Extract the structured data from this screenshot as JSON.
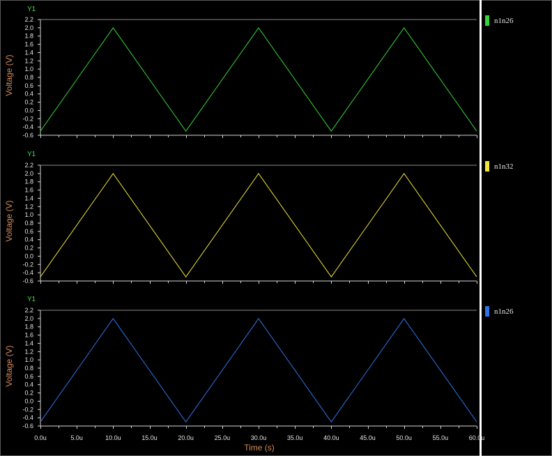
{
  "chart_data": [
    {
      "type": "line",
      "panel_label": "Y1",
      "ylabel": "Voltage (V)",
      "xlabel": "",
      "yticks": [
        "2.2",
        "2.0",
        "1.8",
        "1.6",
        "1.4",
        "1.2",
        "1.0",
        "0.8",
        "0.6",
        "0.4",
        "0.2",
        "0.0",
        "-0.2",
        "-0.4",
        "-0.6"
      ],
      "ylim": [
        -0.6,
        2.2
      ],
      "xlim": [
        0,
        60
      ],
      "grid": false,
      "legend_position": "right",
      "series": [
        {
          "name": "n1n26",
          "color": "#35d43a",
          "x": [
            0,
            10,
            20,
            30,
            40,
            50,
            60
          ],
          "y": [
            -0.5,
            2.0,
            -0.5,
            2.0,
            -0.5,
            2.0,
            -0.5
          ]
        }
      ]
    },
    {
      "type": "line",
      "panel_label": "Y1",
      "ylabel": "Voltage (V)",
      "xlabel": "",
      "yticks": [
        "2.2",
        "2.0",
        "1.8",
        "1.6",
        "1.4",
        "1.2",
        "1.0",
        "0.8",
        "0.6",
        "0.4",
        "0.2",
        "0.0",
        "-0.2",
        "-0.4",
        "-0.6"
      ],
      "ylim": [
        -0.6,
        2.2
      ],
      "xlim": [
        0,
        60
      ],
      "grid": false,
      "legend_position": "right",
      "series": [
        {
          "name": "n1n32",
          "color": "#f2e634",
          "x": [
            0,
            10,
            20,
            30,
            40,
            50,
            60
          ],
          "y": [
            -0.5,
            2.0,
            -0.5,
            2.0,
            -0.5,
            2.0,
            -0.5
          ]
        }
      ]
    },
    {
      "type": "line",
      "panel_label": "Y1",
      "ylabel": "Voltage (V)",
      "xlabel": "Time (s)",
      "yticks": [
        "2.2",
        "2.0",
        "1.8",
        "1.6",
        "1.4",
        "1.2",
        "1.0",
        "0.8",
        "0.6",
        "0.4",
        "0.2",
        "0.0",
        "-0.2",
        "-0.4",
        "-0.6"
      ],
      "xticks": [
        "0.0u",
        "5.0u",
        "10.0u",
        "15.0u",
        "20.0u",
        "25.0u",
        "30.0u",
        "35.0u",
        "40.0u",
        "45.0u",
        "50.0u",
        "55.0u",
        "60.0u"
      ],
      "ylim": [
        -0.6,
        2.2
      ],
      "xlim": [
        0,
        60
      ],
      "grid": false,
      "legend_position": "right",
      "series": [
        {
          "name": "n1n26",
          "color": "#2f73e6",
          "x": [
            0,
            10,
            20,
            30,
            40,
            50,
            60
          ],
          "y": [
            -0.5,
            2.0,
            -0.5,
            2.0,
            -0.5,
            2.0,
            -0.5
          ]
        }
      ]
    }
  ],
  "colors": {
    "background": "#000000",
    "axis": "#d9d9d9",
    "tick_text": "#e6e6e6",
    "axis_label": "#d28a5a",
    "panel_tag": "#3fe23f",
    "divider": "#ffffff"
  }
}
